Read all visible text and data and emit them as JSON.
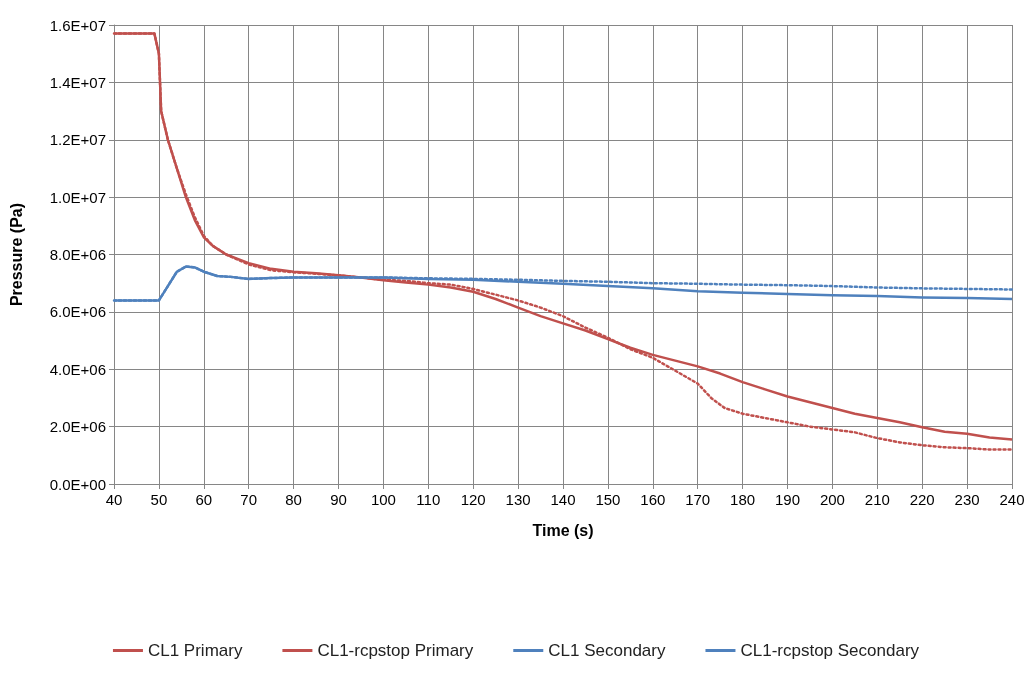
{
  "chart_data": {
    "type": "line",
    "xlabel": "Time (s)",
    "ylabel": "Pressure (Pa)",
    "xlim": [
      40,
      240
    ],
    "xticks": [
      40,
      50,
      60,
      70,
      80,
      90,
      100,
      110,
      120,
      130,
      140,
      150,
      160,
      170,
      180,
      190,
      200,
      210,
      220,
      230,
      240
    ],
    "ylim": [
      0,
      16000000
    ],
    "yticks": [
      {
        "value": 0,
        "label": "0.0E+00"
      },
      {
        "value": 2000000,
        "label": "2.0E+06"
      },
      {
        "value": 4000000,
        "label": "4.0E+06"
      },
      {
        "value": 6000000,
        "label": "6.0E+06"
      },
      {
        "value": 8000000,
        "label": "8.0E+06"
      },
      {
        "value": 10000000,
        "label": "1.0E+07"
      },
      {
        "value": 12000000,
        "label": "1.2E+07"
      },
      {
        "value": 14000000,
        "label": "1.4E+07"
      },
      {
        "value": 16000000,
        "label": "1.6E+07"
      }
    ],
    "grid": true,
    "legend": "bottom",
    "marker": "none",
    "series": [
      {
        "name": "CL1 Primary",
        "color": "#c0504d",
        "line_style": "solid",
        "x": [
          40,
          49,
          50,
          50.5,
          52,
          54,
          56,
          58,
          60,
          62,
          65,
          70,
          75,
          80,
          85,
          90,
          95,
          100,
          105,
          110,
          115,
          120,
          125,
          130,
          135,
          140,
          145,
          150,
          155,
          160,
          165,
          170,
          175,
          180,
          185,
          190,
          195,
          200,
          205,
          210,
          215,
          220,
          225,
          230,
          235,
          240
        ],
        "values": [
          15700000,
          15700000,
          15000000,
          13000000,
          12000000,
          11000000,
          10000000,
          9200000,
          8600000,
          8300000,
          8000000,
          7700000,
          7500000,
          7400000,
          7350000,
          7280000,
          7200000,
          7100000,
          7020000,
          6950000,
          6850000,
          6700000,
          6450000,
          6150000,
          5850000,
          5600000,
          5350000,
          5050000,
          4750000,
          4500000,
          4300000,
          4100000,
          3850000,
          3550000,
          3300000,
          3050000,
          2850000,
          2650000,
          2450000,
          2300000,
          2150000,
          1980000,
          1820000,
          1750000,
          1620000,
          1550000
        ]
      },
      {
        "name": "CL1-rcpstop Primary",
        "color": "#c0504d",
        "line_style": "dotted",
        "x": [
          40,
          49,
          50,
          50.5,
          52,
          54,
          56,
          58,
          60,
          62,
          65,
          70,
          75,
          80,
          85,
          90,
          95,
          100,
          105,
          110,
          115,
          120,
          125,
          130,
          135,
          140,
          145,
          150,
          155,
          160,
          165,
          170,
          173,
          176,
          180,
          185,
          190,
          195,
          200,
          205,
          210,
          215,
          220,
          225,
          230,
          235,
          240
        ],
        "values": [
          15700000,
          15700000,
          15000000,
          13000000,
          12000000,
          11000000,
          10100000,
          9300000,
          8650000,
          8300000,
          8000000,
          7650000,
          7450000,
          7380000,
          7330000,
          7270000,
          7200000,
          7120000,
          7080000,
          7000000,
          6950000,
          6800000,
          6600000,
          6400000,
          6150000,
          5850000,
          5450000,
          5100000,
          4700000,
          4400000,
          3950000,
          3500000,
          3000000,
          2650000,
          2450000,
          2300000,
          2150000,
          2000000,
          1900000,
          1800000,
          1600000,
          1450000,
          1350000,
          1280000,
          1250000,
          1200000,
          1200000
        ]
      },
      {
        "name": "CL1 Secondary",
        "color": "#4f81bd",
        "line_style": "solid",
        "x": [
          40,
          50,
          52,
          54,
          56,
          58,
          60,
          63,
          66,
          70,
          75,
          80,
          90,
          100,
          110,
          120,
          130,
          140,
          150,
          160,
          170,
          180,
          190,
          200,
          210,
          220,
          230,
          240
        ],
        "values": [
          6400000,
          6400000,
          6900000,
          7400000,
          7580000,
          7550000,
          7400000,
          7250000,
          7220000,
          7150000,
          7180000,
          7200000,
          7200000,
          7200000,
          7150000,
          7120000,
          7050000,
          6980000,
          6900000,
          6820000,
          6720000,
          6670000,
          6620000,
          6580000,
          6550000,
          6500000,
          6480000,
          6450000
        ]
      },
      {
        "name": "CL1-rcpstop Secondary",
        "color": "#4f81bd",
        "line_style": "dotted",
        "x": [
          40,
          50,
          52,
          54,
          56,
          58,
          60,
          63,
          66,
          70,
          75,
          80,
          90,
          100,
          110,
          120,
          130,
          140,
          150,
          160,
          170,
          180,
          190,
          200,
          210,
          220,
          230,
          240
        ],
        "values": [
          6400000,
          6400000,
          6900000,
          7400000,
          7580000,
          7550000,
          7400000,
          7250000,
          7220000,
          7150000,
          7180000,
          7200000,
          7200000,
          7200000,
          7170000,
          7150000,
          7120000,
          7080000,
          7050000,
          7000000,
          6980000,
          6950000,
          6930000,
          6900000,
          6850000,
          6820000,
          6800000,
          6780000
        ]
      }
    ]
  }
}
